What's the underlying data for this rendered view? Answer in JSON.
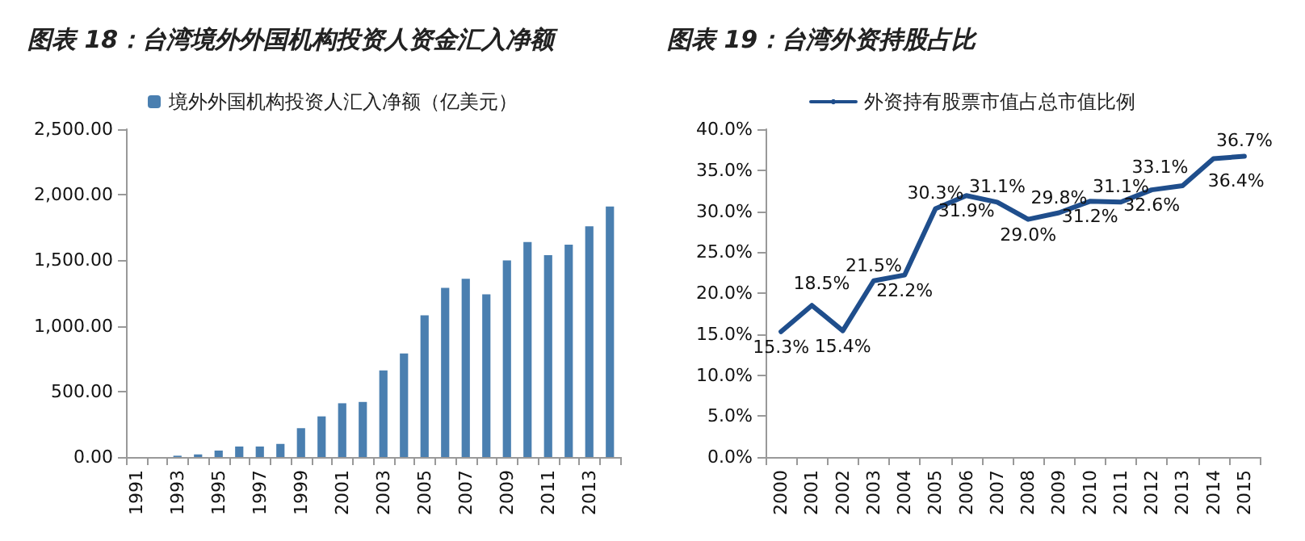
{
  "chart_data": [
    {
      "type": "bar",
      "title": "图表 18：台湾境外外国机构投资人资金汇入净额",
      "categories": [
        "1991",
        null,
        "1993",
        null,
        "1995",
        null,
        "1997",
        null,
        "1999",
        null,
        "2001",
        null,
        "2003",
        null,
        "2005",
        null,
        "2007",
        null,
        "2009",
        null,
        "2011",
        null,
        "2013",
        null
      ],
      "series": [
        {
          "name": "境外外国机构投资人汇入净额（亿美元）",
          "color": "#4a7fb0",
          "values": [
            0,
            0,
            10,
            20,
            50,
            80,
            80,
            100,
            220,
            310,
            410,
            420,
            660,
            790,
            1080,
            1290,
            1360,
            1240,
            1500,
            1640,
            1540,
            1620,
            1760,
            1910
          ]
        }
      ],
      "ylim": [
        0,
        2500
      ],
      "yticks": [
        {
          "value": 0,
          "label": "0.00"
        },
        {
          "value": 500,
          "label": "500.00"
        },
        {
          "value": 1000,
          "label": "1,000.00"
        },
        {
          "value": 1500,
          "label": "1,500.00"
        },
        {
          "value": 2000,
          "label": "2,000.00"
        },
        {
          "value": 2500,
          "label": "2,500.00"
        }
      ],
      "grid": false,
      "legend": "top"
    },
    {
      "type": "line",
      "title": "图表 19：台湾外资持股占比",
      "categories": [
        "2000",
        "2001",
        "2002",
        "2003",
        "2004",
        "2005",
        "2006",
        "2007",
        "2008",
        "2009",
        "2010",
        "2011",
        "2012",
        "2013",
        "2014",
        "2015"
      ],
      "series": [
        {
          "name": "外资持有股票市值占总市值比例",
          "color": "#1f4e8c",
          "values": [
            15.3,
            18.5,
            15.4,
            21.5,
            22.2,
            30.3,
            31.9,
            31.1,
            29.0,
            29.8,
            31.2,
            31.1,
            32.6,
            33.1,
            36.4,
            36.7
          ],
          "value_labels": [
            "15.3%",
            "18.5%",
            "15.4%",
            "21.5%",
            "22.2%",
            "30.3%",
            "31.9%",
            "31.1%",
            "29.0%",
            "29.8%",
            "31.2%",
            "31.1%",
            "32.6%",
            "33.1%",
            "36.4%",
            "36.7%"
          ]
        }
      ],
      "ylim": [
        0,
        40
      ],
      "yticks": [
        {
          "value": 0,
          "label": "0.0%"
        },
        {
          "value": 5,
          "label": "5.0%"
        },
        {
          "value": 10,
          "label": "10.0%"
        },
        {
          "value": 15,
          "label": "15.0%"
        },
        {
          "value": 20,
          "label": "20.0%"
        },
        {
          "value": 25,
          "label": "25.0%"
        },
        {
          "value": 30,
          "label": "30.0%"
        },
        {
          "value": 35,
          "label": "35.0%"
        },
        {
          "value": 40,
          "label": "40.0%"
        }
      ],
      "grid": false,
      "legend": "top",
      "marker": "none",
      "line_style": "solid"
    }
  ]
}
